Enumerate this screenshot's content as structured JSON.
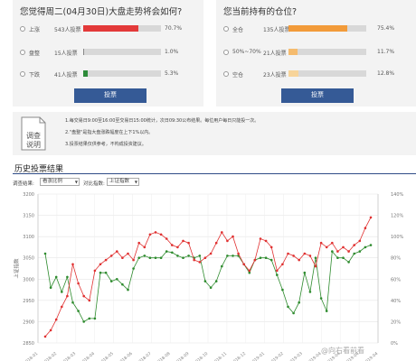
{
  "poll_left": {
    "question": "您觉得周二(04月30日)大盘走势将会如何?",
    "options": [
      {
        "label": "上涨",
        "count": "543人投票",
        "percent": "70.7%",
        "fraction": 0.707,
        "color": "#e33a3a"
      },
      {
        "label": "盘整",
        "count": "15人投票",
        "percent": "1.0%",
        "fraction": 0.01,
        "color": "#888888"
      },
      {
        "label": "下跌",
        "count": "41人投票",
        "percent": "5.3%",
        "fraction": 0.053,
        "color": "#2e8b3a"
      }
    ],
    "vote_label": "投票"
  },
  "poll_right": {
    "question": "您当前持有的仓位?",
    "options": [
      {
        "label": "全仓",
        "count": "135人投票",
        "percent": "75.4%",
        "fraction": 0.754,
        "color": "#f29b3a"
      },
      {
        "label": "50%~70%",
        "count": "21人投票",
        "percent": "11.7%",
        "fraction": 0.117,
        "color": "#f5bb6e"
      },
      {
        "label": "空仓",
        "count": "23人投票",
        "percent": "12.8%",
        "fraction": 0.128,
        "color": "#f7d49a"
      }
    ],
    "vote_label": "投票"
  },
  "notice": {
    "icon_text": "调查说明",
    "lines": [
      "1.每交易日9:00至16:00至交易日15:00统计，次日09:30公布结果。每位用户每日只能投一次。",
      "2.\"盘整\"是指大盘涨跌幅度在上下1%以内。",
      "3.投票结果仅供参考，不构成投资建议。"
    ]
  },
  "history": {
    "title": "历史投票结果",
    "filter1_label": "调查结果:",
    "filter1_value": "看涨比例",
    "filter2_label": "对比指数:",
    "filter2_value": "上证指数"
  },
  "chart_data": {
    "type": "line",
    "left_axis": {
      "label": "上证指数",
      "ticks": [
        "3200",
        "3150",
        "3100",
        "3050",
        "3000",
        "2950",
        "2900",
        "2850"
      ],
      "range": [
        2850,
        3200
      ]
    },
    "right_axis": {
      "ticks": [
        "140%",
        "120%",
        "100%",
        "80%",
        "60%",
        "40%",
        "20%",
        "0%"
      ],
      "range": [
        0,
        140
      ]
    },
    "series": [
      {
        "color": "#2e8b2e",
        "axis": "right",
        "values": [
          84,
          52,
          62,
          48,
          62,
          38,
          30,
          20,
          23,
          23,
          66,
          66,
          58,
          60,
          55,
          50,
          70,
          80,
          82,
          80,
          80,
          80,
          86,
          85,
          82,
          80,
          82,
          80,
          82,
          58,
          52,
          58,
          72,
          82,
          82,
          82,
          74,
          66,
          78,
          80,
          80,
          78,
          64,
          50,
          34,
          28,
          38,
          66,
          48,
          80,
          42,
          30,
          86,
          80,
          80,
          76,
          84,
          86,
          90,
          92
        ]
      },
      {
        "color": "#e03030",
        "axis": "left",
        "values": [
          2865,
          2880,
          2905,
          2935,
          2960,
          3035,
          2990,
          2960,
          2950,
          3020,
          3035,
          3045,
          3055,
          3065,
          3050,
          3060,
          3045,
          3085,
          3075,
          3105,
          3110,
          3105,
          3095,
          3080,
          3075,
          3090,
          3085,
          3045,
          3040,
          3050,
          3060,
          3085,
          3110,
          3090,
          3100,
          3060,
          3035,
          3020,
          3045,
          3095,
          3090,
          3075,
          3020,
          3035,
          3060,
          3055,
          3045,
          3060,
          3055,
          3030,
          3085,
          3075,
          3085,
          3065,
          3075,
          3065,
          3080,
          3090,
          3120,
          3145
        ]
      }
    ],
    "x_ticks": [
      "2018-01",
      "2018-02",
      "2018-03",
      "2018-04",
      "2018-05",
      "2018-06",
      "2018-07",
      "2018-08",
      "2018-09",
      "2018-10",
      "2018-11",
      "2018-12",
      "2019-01",
      "2019-02",
      "2019-03",
      "2019-04",
      "2019-04",
      "2019-04",
      "2019-04"
    ],
    "grid": true
  },
  "watermark": "@向右看前看"
}
